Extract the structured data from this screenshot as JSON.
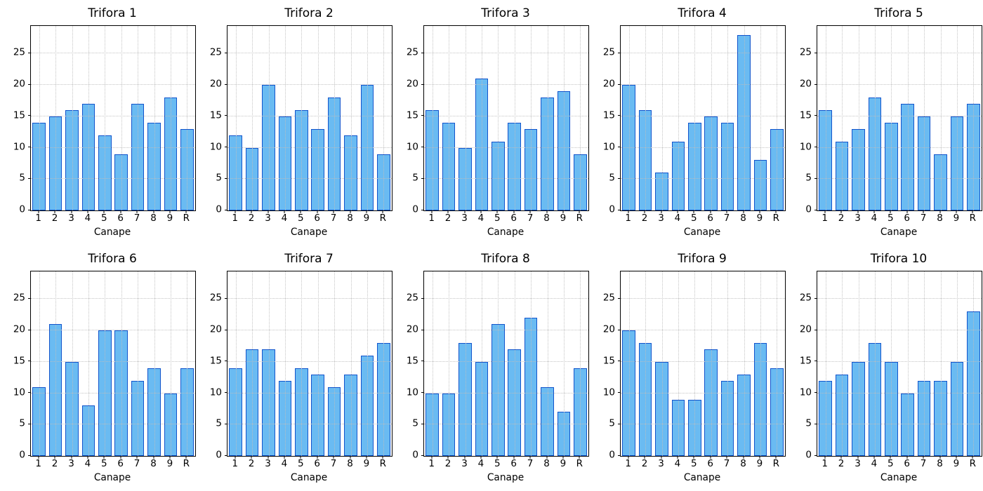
{
  "figure": {
    "xlabel": "Canape",
    "categories": [
      "1",
      "2",
      "3",
      "4",
      "5",
      "6",
      "7",
      "8",
      "9",
      "R"
    ],
    "yticks": [
      0,
      5,
      10,
      15,
      20,
      25
    ],
    "ylim": [
      0,
      29.4
    ],
    "grid": "dotted",
    "bar_fill_color": "#6abbf2",
    "bar_edge_color": "#1254cc",
    "axis_color": "#000000"
  },
  "chart_data": [
    {
      "type": "bar",
      "title": "Trifora 1",
      "xlabel": "Canape",
      "ylabel": "",
      "categories": [
        "1",
        "2",
        "3",
        "4",
        "5",
        "6",
        "7",
        "8",
        "9",
        "R"
      ],
      "values": [
        14,
        15,
        16,
        17,
        12,
        9,
        17,
        14,
        18,
        13
      ],
      "ylim": [
        0,
        29.4
      ]
    },
    {
      "type": "bar",
      "title": "Trifora 2",
      "xlabel": "Canape",
      "ylabel": "",
      "categories": [
        "1",
        "2",
        "3",
        "4",
        "5",
        "6",
        "7",
        "8",
        "9",
        "R"
      ],
      "values": [
        12,
        10,
        20,
        15,
        16,
        13,
        18,
        12,
        20,
        9
      ],
      "ylim": [
        0,
        29.4
      ]
    },
    {
      "type": "bar",
      "title": "Trifora 3",
      "xlabel": "Canape",
      "ylabel": "",
      "categories": [
        "1",
        "2",
        "3",
        "4",
        "5",
        "6",
        "7",
        "8",
        "9",
        "R"
      ],
      "values": [
        16,
        14,
        10,
        21,
        11,
        14,
        13,
        18,
        19,
        9
      ],
      "ylim": [
        0,
        29.4
      ]
    },
    {
      "type": "bar",
      "title": "Trifora 4",
      "xlabel": "Canape",
      "ylabel": "",
      "categories": [
        "1",
        "2",
        "3",
        "4",
        "5",
        "6",
        "7",
        "8",
        "9",
        "R"
      ],
      "values": [
        20,
        16,
        6,
        11,
        14,
        15,
        14,
        28,
        8,
        13
      ],
      "ylim": [
        0,
        29.4
      ]
    },
    {
      "type": "bar",
      "title": "Trifora 5",
      "xlabel": "Canape",
      "ylabel": "",
      "categories": [
        "1",
        "2",
        "3",
        "4",
        "5",
        "6",
        "7",
        "8",
        "9",
        "R"
      ],
      "values": [
        16,
        11,
        13,
        18,
        14,
        17,
        15,
        9,
        15,
        17
      ],
      "ylim": [
        0,
        29.4
      ]
    },
    {
      "type": "bar",
      "title": "Trifora 6",
      "xlabel": "Canape",
      "ylabel": "",
      "categories": [
        "1",
        "2",
        "3",
        "4",
        "5",
        "6",
        "7",
        "8",
        "9",
        "R"
      ],
      "values": [
        11,
        21,
        15,
        8,
        20,
        20,
        12,
        14,
        10,
        14
      ],
      "ylim": [
        0,
        29.4
      ]
    },
    {
      "type": "bar",
      "title": "Trifora 7",
      "xlabel": "Canape",
      "ylabel": "",
      "categories": [
        "1",
        "2",
        "3",
        "4",
        "5",
        "6",
        "7",
        "8",
        "9",
        "R"
      ],
      "values": [
        14,
        17,
        17,
        12,
        14,
        13,
        11,
        13,
        16,
        18
      ],
      "ylim": [
        0,
        29.4
      ]
    },
    {
      "type": "bar",
      "title": "Trifora 8",
      "xlabel": "Canape",
      "ylabel": "",
      "categories": [
        "1",
        "2",
        "3",
        "4",
        "5",
        "6",
        "7",
        "8",
        "9",
        "R"
      ],
      "values": [
        10,
        10,
        18,
        15,
        21,
        17,
        22,
        11,
        7,
        14
      ],
      "ylim": [
        0,
        29.4
      ]
    },
    {
      "type": "bar",
      "title": "Trifora 9",
      "xlabel": "Canape",
      "ylabel": "",
      "categories": [
        "1",
        "2",
        "3",
        "4",
        "5",
        "6",
        "7",
        "8",
        "9",
        "R"
      ],
      "values": [
        20,
        18,
        15,
        9,
        9,
        17,
        12,
        13,
        18,
        14
      ],
      "ylim": [
        0,
        29.4
      ]
    },
    {
      "type": "bar",
      "title": "Trifora 10",
      "xlabel": "Canape",
      "ylabel": "",
      "categories": [
        "1",
        "2",
        "3",
        "4",
        "5",
        "6",
        "7",
        "8",
        "9",
        "R"
      ],
      "values": [
        12,
        13,
        15,
        18,
        15,
        10,
        12,
        12,
        15,
        23
      ],
      "ylim": [
        0,
        29.4
      ]
    }
  ]
}
